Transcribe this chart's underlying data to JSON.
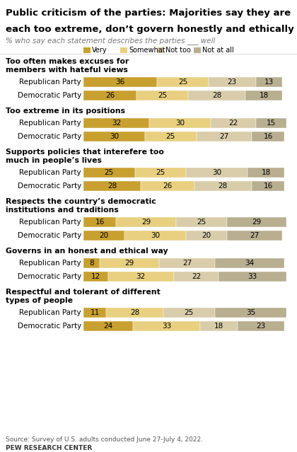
{
  "title_line1": "Public criticism of the parties: Majorities say they are",
  "title_line2": "each too extreme, don’t govern honestly and ethically",
  "subtitle": "% who say each statement describes the parties ___ well",
  "legend_labels": [
    "Very",
    "Somewhat",
    "Not too",
    "Not at all"
  ],
  "colors": [
    "#c8a030",
    "#e8d080",
    "#d8ccaa",
    "#b8ae90"
  ],
  "sections": [
    {
      "label_line1": "Too often makes excuses for",
      "label_line2": "members with hateful views",
      "rows": [
        {
          "party": "Republican Party",
          "values": [
            36,
            25,
            23,
            13
          ]
        },
        {
          "party": "Democratic Party",
          "values": [
            26,
            25,
            28,
            18
          ]
        }
      ]
    },
    {
      "label_line1": "Too extreme in its positions",
      "label_line2": "",
      "rows": [
        {
          "party": "Republican Party",
          "values": [
            32,
            30,
            22,
            15
          ]
        },
        {
          "party": "Democratic Party",
          "values": [
            30,
            25,
            27,
            16
          ]
        }
      ]
    },
    {
      "label_line1": "Supports policies that interefere too",
      "label_line2": "much in people’s lives",
      "rows": [
        {
          "party": "Republican Party",
          "values": [
            25,
            25,
            30,
            18
          ]
        },
        {
          "party": "Democratic Party",
          "values": [
            28,
            26,
            28,
            16
          ]
        }
      ]
    },
    {
      "label_line1": "Respects the country’s democratic",
      "label_line2": "institutions and traditions",
      "rows": [
        {
          "party": "Republican Party",
          "values": [
            16,
            29,
            25,
            29
          ]
        },
        {
          "party": "Democratic Party",
          "values": [
            20,
            30,
            20,
            27
          ]
        }
      ]
    },
    {
      "label_line1": "Governs in an honest and ethical way",
      "label_line2": "",
      "rows": [
        {
          "party": "Republican Party",
          "values": [
            8,
            29,
            27,
            34
          ]
        },
        {
          "party": "Democratic Party",
          "values": [
            12,
            32,
            22,
            33
          ]
        }
      ]
    },
    {
      "label_line1": "Respectful and tolerant of different",
      "label_line2": "types of people",
      "rows": [
        {
          "party": "Republican Party",
          "values": [
            11,
            28,
            25,
            35
          ]
        },
        {
          "party": "Democratic Party",
          "values": [
            24,
            33,
            18,
            23
          ]
        }
      ]
    }
  ],
  "footer": "Source: Survey of U.S. adults conducted June 27-July 4, 2022.",
  "footer2": "PEW RESEARCH CENTER"
}
